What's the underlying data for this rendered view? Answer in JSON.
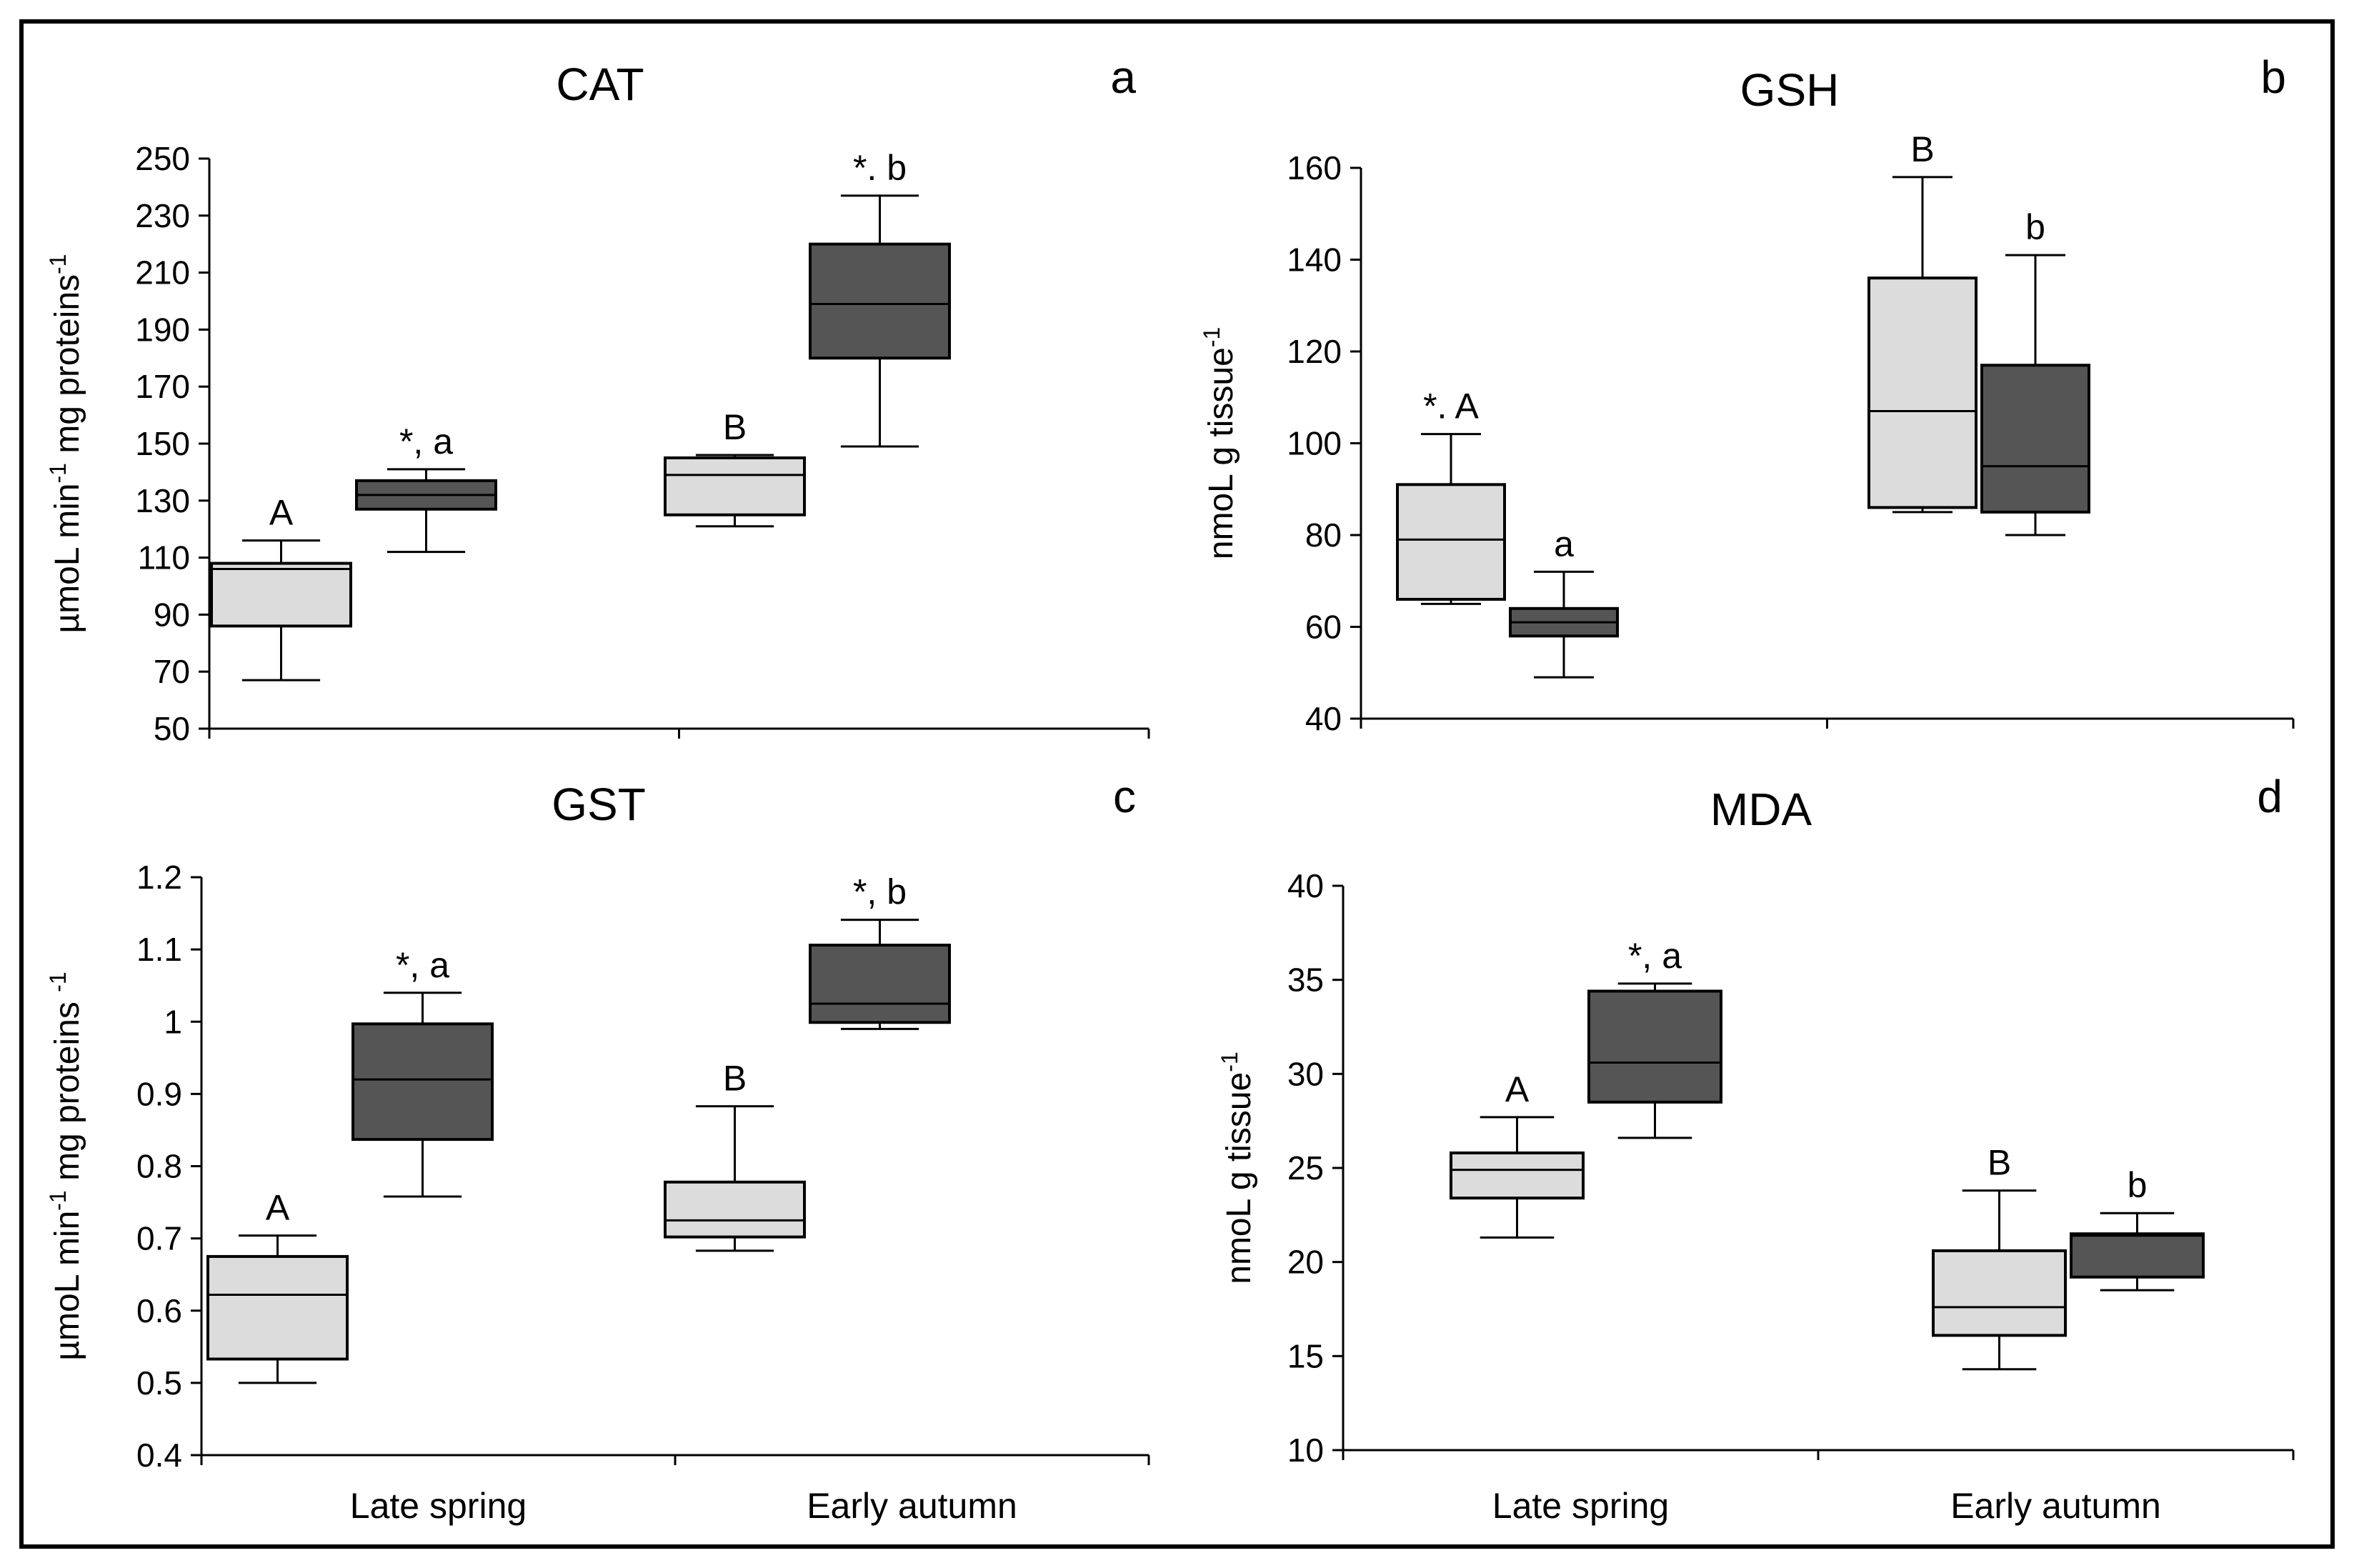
{
  "chart_data": [
    {
      "type": "boxplot",
      "panel_letter": "a",
      "title": "CAT",
      "ylabel_main": "µmoL min",
      "ylabel_sup1": "-1",
      "ylabel_mid": " mg proteins",
      "ylabel_sup2": "-1",
      "ylim": [
        50,
        250
      ],
      "yticks": [
        50,
        70,
        90,
        110,
        130,
        150,
        170,
        190,
        210,
        230,
        250
      ],
      "ytick_labels": [
        "50",
        "70",
        "90",
        "110",
        "130",
        "150",
        "170",
        "190",
        "210",
        "230",
        "250"
      ],
      "categories": [
        "Late spring",
        "Early autumn"
      ],
      "show_category_labels": false,
      "boxes": [
        {
          "category": 0,
          "series": "light",
          "min": 67,
          "q1": 86,
          "median": 106,
          "q3": 108,
          "max": 116,
          "label": "A"
        },
        {
          "category": 0,
          "series": "dark",
          "min": 112,
          "q1": 127,
          "median": 132,
          "q3": 137,
          "max": 141,
          "label": "*, a"
        },
        {
          "category": 1,
          "series": "light",
          "min": 121,
          "q1": 125,
          "median": 139,
          "q3": 145,
          "max": 146,
          "label": "B"
        },
        {
          "category": 1,
          "series": "dark",
          "min": 149,
          "q1": 180,
          "median": 199,
          "q3": 220,
          "max": 237,
          "label": "*. b"
        }
      ]
    },
    {
      "type": "boxplot",
      "panel_letter": "b",
      "title": "GSH",
      "ylabel_main": "nmoL g tissue",
      "ylabel_sup1": "-1",
      "ylabel_mid": "",
      "ylabel_sup2": "",
      "ylim": [
        40,
        160
      ],
      "yticks": [
        40,
        60,
        80,
        100,
        120,
        140,
        160
      ],
      "ytick_labels": [
        "40",
        "60",
        "80",
        "100",
        "120",
        "140",
        "160"
      ],
      "categories": [
        "Late spring",
        "Early autumn"
      ],
      "show_category_labels": false,
      "boxes": [
        {
          "category": 0,
          "series": "light",
          "min": 65,
          "q1": 66,
          "median": 79,
          "q3": 91,
          "max": 102,
          "label": "*. A"
        },
        {
          "category": 0,
          "series": "dark",
          "min": 49,
          "q1": 58,
          "median": 61,
          "q3": 64,
          "max": 72,
          "label": "a"
        },
        {
          "category": 1,
          "series": "light",
          "min": 85,
          "q1": 86,
          "median": 107,
          "q3": 136,
          "max": 158,
          "label": "B"
        },
        {
          "category": 1,
          "series": "dark",
          "min": 80,
          "q1": 85,
          "median": 95,
          "q3": 117,
          "max": 141,
          "label": "b"
        }
      ]
    },
    {
      "type": "boxplot",
      "panel_letter": "c",
      "title": "GST",
      "ylabel_main": "µmoL min",
      "ylabel_sup1": "-1",
      "ylabel_mid": " mg proteins ",
      "ylabel_sup2": "-1",
      "ylim": [
        0.4,
        1.2
      ],
      "yticks": [
        0.4,
        0.5,
        0.6,
        0.7,
        0.8,
        0.9,
        1.0,
        1.1,
        1.2
      ],
      "ytick_labels": [
        "0.4",
        "0.5",
        "0.6",
        "0.7",
        "0.8",
        "0.9",
        "1",
        "1.1",
        "1.2"
      ],
      "categories": [
        "Late spring",
        "Early autumn"
      ],
      "show_category_labels": true,
      "boxes": [
        {
          "category": 0,
          "series": "light",
          "min": 0.5,
          "q1": 0.533,
          "median": 0.622,
          "q3": 0.675,
          "max": 0.704,
          "label": "A"
        },
        {
          "category": 0,
          "series": "dark",
          "min": 0.758,
          "q1": 0.837,
          "median": 0.92,
          "q3": 0.997,
          "max": 1.04,
          "label": "*, a"
        },
        {
          "category": 1,
          "series": "light",
          "min": 0.683,
          "q1": 0.702,
          "median": 0.725,
          "q3": 0.778,
          "max": 0.883,
          "label": "B"
        },
        {
          "category": 1,
          "series": "dark",
          "min": 0.99,
          "q1": 0.999,
          "median": 1.025,
          "q3": 1.106,
          "max": 1.141,
          "label": "*, b"
        }
      ]
    },
    {
      "type": "boxplot",
      "panel_letter": "d",
      "title": "MDA",
      "ylabel_main": "nmoL g tissue",
      "ylabel_sup1": "-1",
      "ylabel_mid": "",
      "ylabel_sup2": "",
      "ylim": [
        10,
        40
      ],
      "yticks": [
        10,
        15,
        20,
        25,
        30,
        35,
        40
      ],
      "ytick_labels": [
        "10",
        "15",
        "20",
        "25",
        "30",
        "35",
        "40"
      ],
      "categories": [
        "Late spring",
        "Early autumn"
      ],
      "show_category_labels": true,
      "boxes": [
        {
          "category": 0,
          "series": "light",
          "min": 21.3,
          "q1": 23.4,
          "median": 24.9,
          "q3": 25.8,
          "max": 27.7,
          "label": "A"
        },
        {
          "category": 0,
          "series": "dark",
          "min": 26.6,
          "q1": 28.5,
          "median": 30.6,
          "q3": 34.4,
          "max": 34.8,
          "label": "*, a"
        },
        {
          "category": 1,
          "series": "light",
          "min": 14.3,
          "q1": 16.1,
          "median": 17.6,
          "q3": 20.6,
          "max": 23.8,
          "label": "B"
        },
        {
          "category": 1,
          "series": "dark",
          "min": 18.5,
          "q1": 19.2,
          "median": 21.4,
          "q3": 21.5,
          "max": 22.6,
          "label": "b"
        }
      ]
    }
  ],
  "colors": {
    "light_box": "#dcdcdc",
    "dark_box": "#555555",
    "stroke": "#000000",
    "frame": "#000000"
  }
}
